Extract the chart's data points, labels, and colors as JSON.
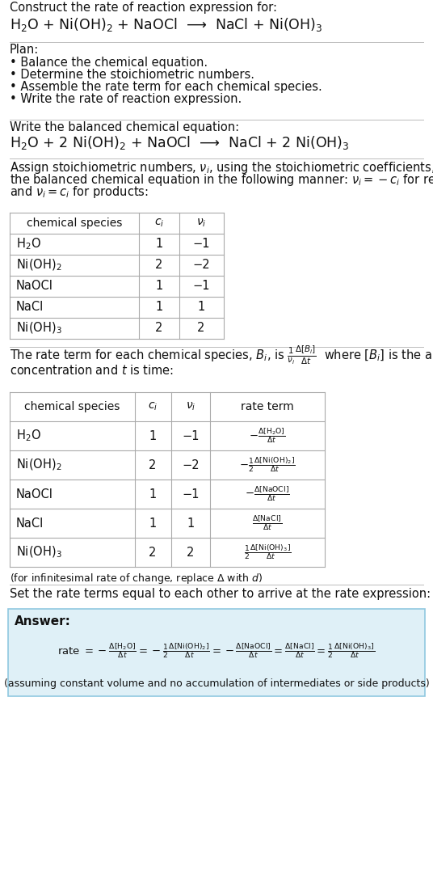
{
  "bg_color": "#ffffff",
  "answer_box_color": "#dff0f7",
  "answer_box_border": "#90c8e0",
  "table_border_color": "#aaaaaa",
  "sections": {
    "title1": "Construct the rate of reaction expression for:",
    "title2": "H$_2$O + Ni(OH)$_2$ + NaOCl  ⟶  NaCl + Ni(OH)$_3$",
    "plan_header": "Plan:",
    "plan_items": [
      "• Balance the chemical equation.",
      "• Determine the stoichiometric numbers.",
      "• Assemble the rate term for each chemical species.",
      "• Write the rate of reaction expression."
    ],
    "balanced_header": "Write the balanced chemical equation:",
    "balanced_eq": "H$_2$O + 2 Ni(OH)$_2$ + NaOCl  ⟶  NaCl + 2 Ni(OH)$_3$",
    "stoich_intro_parts": [
      "Assign stoichiometric numbers, $\\nu_i$, using the stoichiometric coefficients, $c_i$, from",
      "the balanced chemical equation in the following manner: $\\nu_i = -c_i$ for reactants",
      "and $\\nu_i = c_i$ for products:"
    ],
    "table1_col_headers": [
      "chemical species",
      "$c_i$",
      "$\\nu_i$"
    ],
    "table1_rows": [
      [
        "H$_2$O",
        "1",
        "−1"
      ],
      [
        "Ni(OH)$_2$",
        "2",
        "−2"
      ],
      [
        "NaOCl",
        "1",
        "−1"
      ],
      [
        "NaCl",
        "1",
        "1"
      ],
      [
        "Ni(OH)$_3$",
        "2",
        "2"
      ]
    ],
    "rate_intro_parts": [
      "The rate term for each chemical species, $B_i$, is $\\frac{1}{\\nu_i}\\frac{\\Delta[B_i]}{\\Delta t}$  where $[B_i]$ is the amount",
      "concentration and $t$ is time:"
    ],
    "table2_col_headers": [
      "chemical species",
      "$c_i$",
      "$\\nu_i$",
      "rate term"
    ],
    "table2_rows": [
      [
        "H$_2$O",
        "1",
        "−1",
        "$-\\frac{\\Delta[\\mathrm{H_2O}]}{\\Delta t}$"
      ],
      [
        "Ni(OH)$_2$",
        "2",
        "−2",
        "$-\\frac{1}{2}\\frac{\\Delta[\\mathrm{Ni(OH)_2}]}{\\Delta t}$"
      ],
      [
        "NaOCl",
        "1",
        "−1",
        "$-\\frac{\\Delta[\\mathrm{NaOCl}]}{\\Delta t}$"
      ],
      [
        "NaCl",
        "1",
        "1",
        "$\\frac{\\Delta[\\mathrm{NaCl}]}{\\Delta t}$"
      ],
      [
        "Ni(OH)$_3$",
        "2",
        "2",
        "$\\frac{1}{2}\\frac{\\Delta[\\mathrm{Ni(OH)_3}]}{\\Delta t}$"
      ]
    ],
    "infinitesimal_note": "(for infinitesimal rate of change, replace Δ with $d$)",
    "answer_intro": "Set the rate terms equal to each other to arrive at the rate expression:",
    "answer_label": "Answer:",
    "answer_eq_parts": [
      "rate $= -\\frac{\\Delta[\\mathrm{H_2O}]}{\\Delta t} = -\\frac{1}{2}\\frac{\\Delta[\\mathrm{Ni(OH)_2}]}{\\Delta t} = -\\frac{\\Delta[\\mathrm{NaOCl}]}{\\Delta t} = \\frac{\\Delta[\\mathrm{NaCl}]}{\\Delta t} = \\frac{1}{2}\\frac{\\Delta[\\mathrm{Ni(OH)_3}]}{\\Delta t}$"
    ],
    "answer_note": "(assuming constant volume and no accumulation of intermediates or side products)"
  }
}
